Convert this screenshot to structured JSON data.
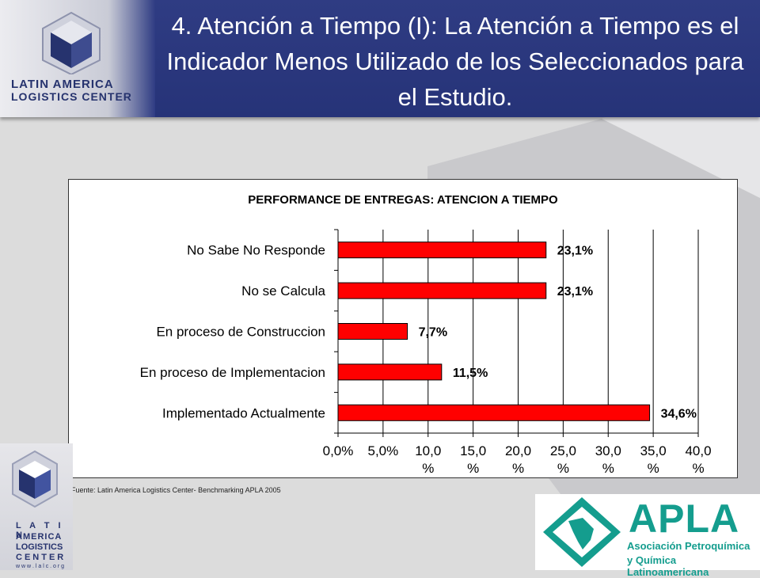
{
  "header": {
    "title": "4. Atención a Tiempo (I): La Atención a Tiempo es el Indicador Menos Utilizado de los Seleccionados para el Estudio.",
    "logo_line1": "LATIN AMERICA",
    "logo_line2": "LOGISTICS CENTER"
  },
  "chart_data": {
    "type": "bar",
    "orientation": "horizontal",
    "title": "PERFORMANCE DE ENTREGAS: ATENCION A TIEMPO",
    "categories": [
      "No Sabe No Responde",
      "No se Calcula",
      "En proceso de Construccion",
      "En proceso de Implementacion",
      "Implementado Actualmente"
    ],
    "values": [
      23.1,
      23.1,
      7.7,
      11.5,
      34.6
    ],
    "data_labels": [
      "23,1%",
      "23,1%",
      "7,7%",
      "11,5%",
      "34,6%"
    ],
    "xlim": [
      0,
      40
    ],
    "xticks": [
      0,
      5,
      10,
      15,
      20,
      25,
      30,
      35,
      40
    ],
    "xtick_labels": [
      "0,0%",
      "5,0%",
      "10,0 %",
      "15,0 %",
      "20,0 %",
      "25,0 %",
      "30,0 %",
      "35,0 %",
      "40,0 %"
    ],
    "grid": true,
    "bar_color": "#ff0000"
  },
  "source": "Fuente: Latin America Logistics Center- Benchmarking APLA 2005",
  "footer_logo": {
    "llc_letters": [
      "L A T I N",
      "AMERICA",
      "LOGISTICS",
      "CENTER"
    ],
    "llc_url": "w w w . l a l c . o r g"
  },
  "apla": {
    "name": "APLA",
    "sub1": "Asociación Petroquímica",
    "sub2": "y Química Latinoamericana"
  }
}
